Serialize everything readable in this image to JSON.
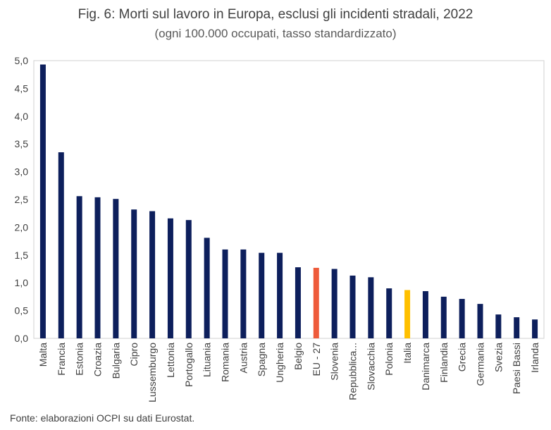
{
  "chart_data": {
    "type": "bar",
    "title": "Fig. 6: Morti sul lavoro in Europa, esclusi gli incidenti stradali, 2022",
    "subtitle": "(ogni 100.000 occupati, tasso standardizzato)",
    "categories": [
      "Malta",
      "Francia",
      "Estonia",
      "Croazia",
      "Bulgaria",
      "Cipro",
      "Lussemburgo",
      "Lettonia",
      "Portogallo",
      "Lituania",
      "Romania",
      "Austria",
      "Spagna",
      "Ungheria",
      "Belgio",
      "EU - 27",
      "Slovenia",
      "Repubblica...",
      "Slovacchia",
      "Polonia",
      "Italia",
      "Danimarca",
      "Finlandia",
      "Grecia",
      "Germania",
      "Svezia",
      "Paesi Bassi",
      "Irlanda"
    ],
    "values": [
      4.93,
      3.35,
      2.56,
      2.54,
      2.51,
      2.32,
      2.29,
      2.16,
      2.13,
      1.81,
      1.6,
      1.6,
      1.54,
      1.54,
      1.28,
      1.27,
      1.25,
      1.13,
      1.1,
      0.9,
      0.87,
      0.85,
      0.75,
      0.71,
      0.62,
      0.43,
      0.38,
      0.34
    ],
    "ylim": [
      0,
      5
    ],
    "yticks": [
      "0,0",
      "0,5",
      "1,0",
      "1,5",
      "2,0",
      "2,5",
      "3,0",
      "3,5",
      "4,0",
      "4,5",
      "5,0"
    ],
    "grid": false,
    "colors": {
      "default": "#0d1f5c",
      "EU - 27": "#ee5a3a",
      "Italia": "#ffc000"
    }
  },
  "source": "Fonte: elaborazioni OCPI su dati Eurostat."
}
